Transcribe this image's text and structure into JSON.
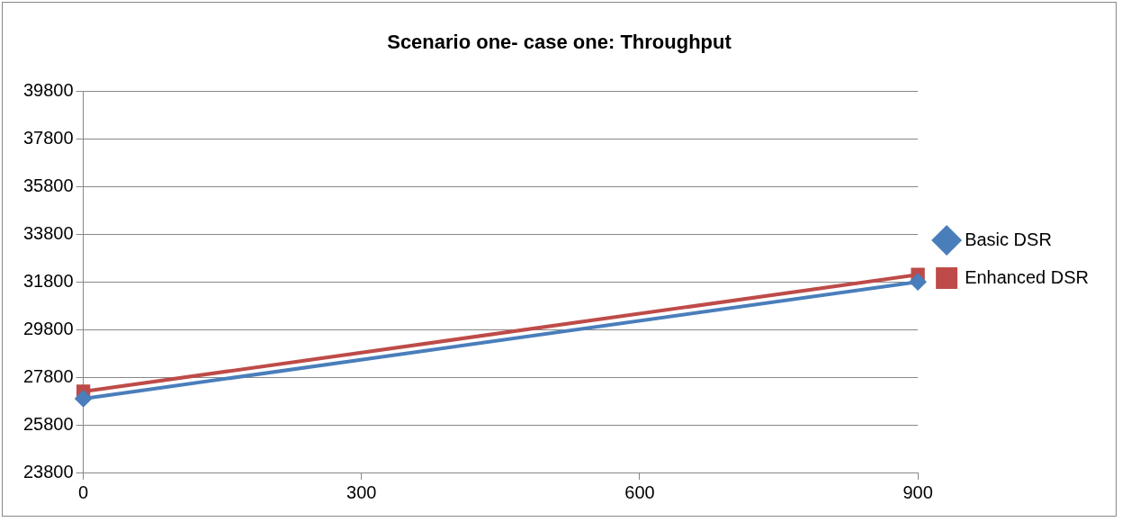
{
  "chart_data": {
    "type": "line",
    "title": "Scenario one- case one: Throughput",
    "x": [
      0,
      900
    ],
    "series": [
      {
        "name": "Basic DSR",
        "color": "#4a7ebb",
        "values": [
          26900,
          31800
        ],
        "marker": "diamond"
      },
      {
        "name": "Enhanced DSR",
        "color": "#be4b48",
        "values": [
          27200,
          32100
        ],
        "marker": "square"
      }
    ],
    "xlim": [
      0,
      900
    ],
    "xticks": [
      0,
      300,
      600,
      900
    ],
    "ylim": [
      23800,
      39800
    ],
    "yticks": [
      23800,
      25800,
      27800,
      29800,
      31800,
      33800,
      35800,
      37800,
      39800
    ],
    "grid": "y",
    "legend": "right",
    "line_style": "solid"
  }
}
